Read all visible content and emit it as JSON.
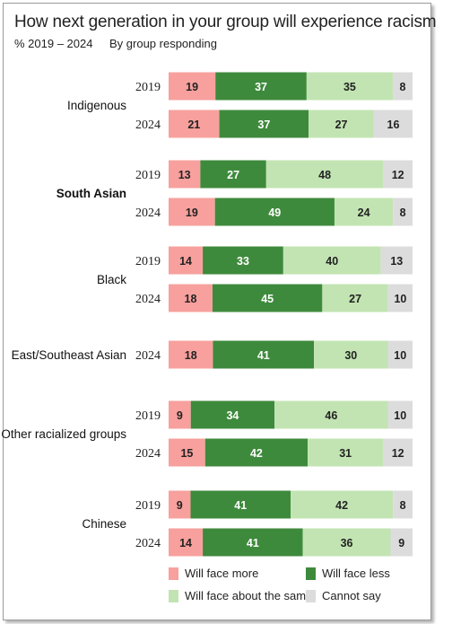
{
  "title": "How next generation in your group will experience racism",
  "subtitle_range": "% 2019 – 2024",
  "subtitle_by": "By group responding",
  "colors": {
    "more": "#f7a09d",
    "less": "#3e8a3c",
    "same": "#c2e4b2",
    "cannot": "#dcdcdc"
  },
  "chart_data": {
    "type": "bar",
    "orientation": "horizontal-stacked",
    "xlim": [
      0,
      100
    ],
    "series": [
      {
        "key": "more",
        "name": "Will face more"
      },
      {
        "key": "less",
        "name": "Will face less"
      },
      {
        "key": "same",
        "name": "Will face about the same"
      },
      {
        "key": "cannot",
        "name": "Cannot say"
      }
    ],
    "groups": [
      {
        "label": "Indigenous",
        "bold": false,
        "rows": [
          {
            "year": "2019",
            "values": [
              19,
              37,
              35,
              8
            ]
          },
          {
            "year": "2024",
            "values": [
              21,
              37,
              27,
              16
            ]
          }
        ]
      },
      {
        "label": "South Asian",
        "bold": true,
        "rows": [
          {
            "year": "2019",
            "values": [
              13,
              27,
              48,
              12
            ]
          },
          {
            "year": "2024",
            "values": [
              19,
              49,
              24,
              8
            ]
          }
        ]
      },
      {
        "label": "Black",
        "bold": false,
        "rows": [
          {
            "year": "2019",
            "values": [
              14,
              33,
              40,
              13
            ]
          },
          {
            "year": "2024",
            "values": [
              18,
              45,
              27,
              10
            ]
          }
        ]
      },
      {
        "label": "East/Southeast Asian",
        "bold": false,
        "rows": [
          {
            "year": "2024",
            "values": [
              18,
              41,
              30,
              10
            ]
          }
        ]
      },
      {
        "label": "Other racialized groups",
        "bold": false,
        "rows": [
          {
            "year": "2019",
            "values": [
              9,
              34,
              46,
              10
            ]
          },
          {
            "year": "2024",
            "values": [
              15,
              42,
              31,
              12
            ]
          }
        ]
      },
      {
        "label": "Chinese",
        "bold": false,
        "rows": [
          {
            "year": "2019",
            "values": [
              9,
              41,
              42,
              8
            ]
          },
          {
            "year": "2024",
            "values": [
              14,
              41,
              36,
              9
            ]
          }
        ]
      }
    ],
    "legend": {
      "placement": "bottom",
      "items": [
        {
          "key": "more",
          "label": "Will face more"
        },
        {
          "key": "less",
          "label": "Will face less"
        },
        {
          "key": "same",
          "label": "Will face about the same"
        },
        {
          "key": "cannot",
          "label": "Cannot say"
        }
      ]
    }
  }
}
